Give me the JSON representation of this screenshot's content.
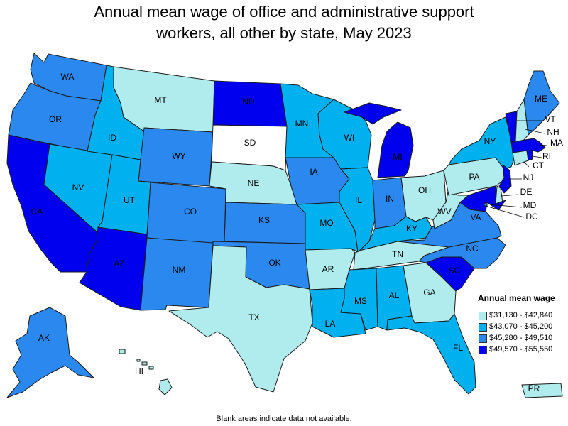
{
  "title": {
    "line1": "Annual mean wage of office and administrative support",
    "line2": "workers, all other by state, May 2023"
  },
  "legend": {
    "title": "Annual mean wage",
    "bins": [
      {
        "label": "$31,130 - $42,840",
        "color": "#b0eced"
      },
      {
        "label": "$43,070 - $45,200",
        "color": "#00b0ef"
      },
      {
        "label": "$45,280 - $49,510",
        "color": "#2a88ee"
      },
      {
        "label": "$49,570 - $55,550",
        "color": "#0000ee"
      }
    ]
  },
  "no_data_color": "#ffffff",
  "footnote": "Blank areas indicate data not available.",
  "states": [
    {
      "abbr": "WA",
      "bin": 2
    },
    {
      "abbr": "OR",
      "bin": 2
    },
    {
      "abbr": "CA",
      "bin": 3
    },
    {
      "abbr": "NV",
      "bin": 1
    },
    {
      "abbr": "ID",
      "bin": 1
    },
    {
      "abbr": "MT",
      "bin": 0
    },
    {
      "abbr": "WY",
      "bin": 2
    },
    {
      "abbr": "UT",
      "bin": 1
    },
    {
      "abbr": "AZ",
      "bin": 3
    },
    {
      "abbr": "CO",
      "bin": 2
    },
    {
      "abbr": "NM",
      "bin": 2
    },
    {
      "abbr": "ND",
      "bin": 3
    },
    {
      "abbr": "SD",
      "bin": null
    },
    {
      "abbr": "NE",
      "bin": 0
    },
    {
      "abbr": "KS",
      "bin": 2
    },
    {
      "abbr": "OK",
      "bin": 2
    },
    {
      "abbr": "TX",
      "bin": 0
    },
    {
      "abbr": "MN",
      "bin": 1
    },
    {
      "abbr": "IA",
      "bin": 2
    },
    {
      "abbr": "MO",
      "bin": 1
    },
    {
      "abbr": "AR",
      "bin": 0
    },
    {
      "abbr": "LA",
      "bin": 1
    },
    {
      "abbr": "WI",
      "bin": 1
    },
    {
      "abbr": "IL",
      "bin": 1
    },
    {
      "abbr": "MI",
      "bin": 3
    },
    {
      "abbr": "IN",
      "bin": 2
    },
    {
      "abbr": "OH",
      "bin": 0
    },
    {
      "abbr": "KY",
      "bin": 1
    },
    {
      "abbr": "TN",
      "bin": 0
    },
    {
      "abbr": "MS",
      "bin": 1
    },
    {
      "abbr": "AL",
      "bin": 1
    },
    {
      "abbr": "GA",
      "bin": 0
    },
    {
      "abbr": "FL",
      "bin": 1
    },
    {
      "abbr": "SC",
      "bin": 3
    },
    {
      "abbr": "NC",
      "bin": 2
    },
    {
      "abbr": "VA",
      "bin": 2
    },
    {
      "abbr": "WV",
      "bin": 0
    },
    {
      "abbr": "PA",
      "bin": 0
    },
    {
      "abbr": "NY",
      "bin": 1
    },
    {
      "abbr": "VT",
      "bin": 3
    },
    {
      "abbr": "NH",
      "bin": 0
    },
    {
      "abbr": "ME",
      "bin": 2
    },
    {
      "abbr": "MA",
      "bin": 3
    },
    {
      "abbr": "RI",
      "bin": 3
    },
    {
      "abbr": "CT",
      "bin": 0
    },
    {
      "abbr": "NJ",
      "bin": 3
    },
    {
      "abbr": "DE",
      "bin": 0
    },
    {
      "abbr": "MD",
      "bin": 3
    },
    {
      "abbr": "DC",
      "bin": 2
    },
    {
      "abbr": "AK",
      "bin": 2
    },
    {
      "abbr": "HI",
      "bin": 0
    },
    {
      "abbr": "PR",
      "bin": 0
    }
  ]
}
